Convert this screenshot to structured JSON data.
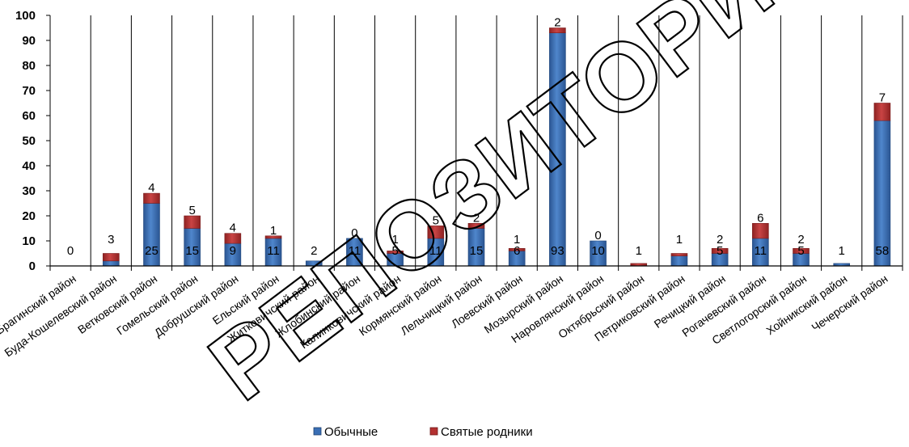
{
  "chart_data": {
    "type": "bar",
    "stacked": true,
    "categories": [
      "Брагинский район",
      "Буда-Кошелевский район",
      "Ветковский район",
      "Гомельский район",
      "Добрушский район",
      "Ельский район",
      "Житковичский район",
      "Жлобинский район",
      "Калинковичский район",
      "Кормянский район",
      "Лельчицкий район",
      "Лоевский район",
      "Мозырский район",
      "Наровлянский район",
      "Октябрьский район",
      "Петриковский район",
      "Речицкий район",
      "Рогачевский район",
      "Светлогорский район",
      "Хойникский район",
      "Чечерский район"
    ],
    "series": [
      {
        "name": "Обычные",
        "color": "#3a6fb5",
        "values": [
          0,
          2,
          25,
          15,
          9,
          11,
          2,
          11,
          5,
          11,
          15,
          6,
          93,
          10,
          0,
          4,
          5,
          11,
          5,
          1,
          58
        ]
      },
      {
        "name": "Святые родники",
        "color": "#b33030",
        "values": [
          0,
          3,
          4,
          5,
          4,
          1,
          0,
          0,
          1,
          5,
          2,
          1,
          2,
          0,
          1,
          1,
          2,
          6,
          2,
          0,
          7
        ]
      }
    ],
    "bottom_labels": [
      "0",
      "",
      "25",
      "15",
      "9",
      "11",
      "2",
      "11",
      "5",
      "11",
      "15",
      "6",
      "93",
      "10",
      "1",
      "",
      "5",
      "11",
      "5",
      "1",
      "58"
    ],
    "top_labels": [
      "",
      "3",
      "4",
      "5",
      "4",
      "1",
      "",
      "0",
      "1",
      "5",
      "2",
      "1",
      "2",
      "0",
      "",
      "1",
      "2",
      "6",
      "2",
      "",
      "7"
    ],
    "ylim": [
      0,
      100
    ],
    "yticks": [
      0,
      10,
      20,
      30,
      40,
      50,
      60,
      70,
      80,
      90,
      100
    ],
    "grid": "vertical",
    "legend": "bottom",
    "title": "",
    "xlabel": "",
    "ylabel": "",
    "watermark": "РЕПОЗИТОРИЙ ГГУ"
  }
}
